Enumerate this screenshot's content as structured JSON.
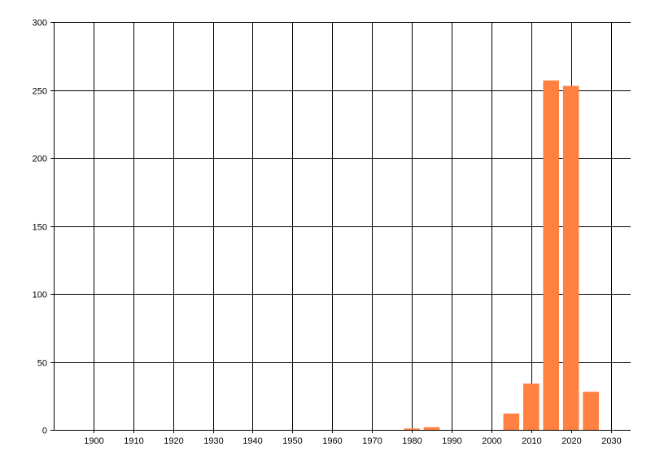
{
  "chart_data": {
    "type": "bar",
    "title": "",
    "xlabel": "",
    "ylabel": "",
    "x": [
      1980,
      1985,
      2005,
      2010,
      2015,
      2020,
      2025
    ],
    "values": [
      1,
      2,
      12,
      34,
      257,
      253,
      28
    ],
    "bar_width_years": 4,
    "xlim": [
      1890,
      2035
    ],
    "ylim": [
      0,
      300
    ],
    "xticks": [
      1900,
      1910,
      1920,
      1930,
      1940,
      1950,
      1960,
      1970,
      1980,
      1990,
      2000,
      2010,
      2020,
      2030
    ],
    "yticks": [
      0,
      50,
      100,
      150,
      200,
      250,
      300
    ],
    "grid": true,
    "legend": "none",
    "colors": {
      "bar": "#FF8040",
      "grid": "#000000",
      "axis": "#000000"
    }
  }
}
